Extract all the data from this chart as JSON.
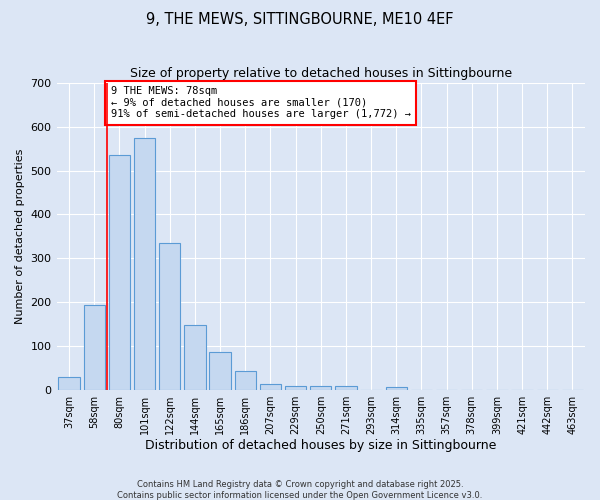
{
  "title1": "9, THE MEWS, SITTINGBOURNE, ME10 4EF",
  "title2": "Size of property relative to detached houses in Sittingbourne",
  "xlabel": "Distribution of detached houses by size in Sittingbourne",
  "ylabel": "Number of detached properties",
  "bar_labels": [
    "37sqm",
    "58sqm",
    "80sqm",
    "101sqm",
    "122sqm",
    "144sqm",
    "165sqm",
    "186sqm",
    "207sqm",
    "229sqm",
    "250sqm",
    "271sqm",
    "293sqm",
    "314sqm",
    "335sqm",
    "357sqm",
    "378sqm",
    "399sqm",
    "421sqm",
    "442sqm",
    "463sqm"
  ],
  "bar_values": [
    30,
    193,
    535,
    575,
    335,
    148,
    87,
    42,
    12,
    9,
    8,
    8,
    0,
    6,
    0,
    0,
    0,
    0,
    0,
    0,
    0
  ],
  "bar_color": "#c5d8f0",
  "bar_edge_color": "#5b9bd5",
  "bg_color": "#dce6f5",
  "red_line_index": 2,
  "annotation_text": "9 THE MEWS: 78sqm\n← 9% of detached houses are smaller (170)\n91% of semi-detached houses are larger (1,772) →",
  "annotation_box_color": "white",
  "annotation_edge_color": "red",
  "ylim": [
    0,
    700
  ],
  "yticks": [
    0,
    100,
    200,
    300,
    400,
    500,
    600,
    700
  ],
  "footer1": "Contains HM Land Registry data © Crown copyright and database right 2025.",
  "footer2": "Contains public sector information licensed under the Open Government Licence v3.0."
}
